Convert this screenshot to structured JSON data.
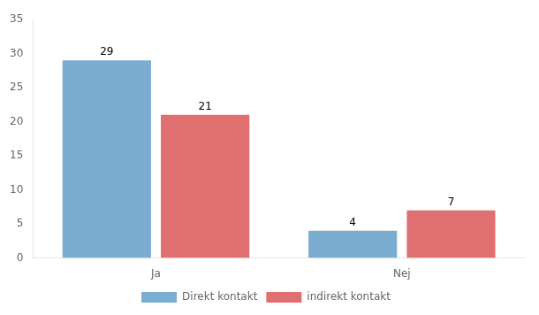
{
  "chart_data": {
    "type": "bar",
    "categories": [
      "Ja",
      "Nej"
    ],
    "series": [
      {
        "name": "Direkt kontakt",
        "color": "#7aadcf",
        "values": [
          29,
          4
        ]
      },
      {
        "name": "indirekt kontakt",
        "color": "#e07070",
        "values": [
          21,
          7
        ]
      }
    ],
    "ylim": [
      0,
      35
    ],
    "yticks": [
      0,
      5,
      10,
      15,
      20,
      25,
      30,
      35
    ],
    "grid": false,
    "legend": "bottom",
    "data_labels": true
  }
}
